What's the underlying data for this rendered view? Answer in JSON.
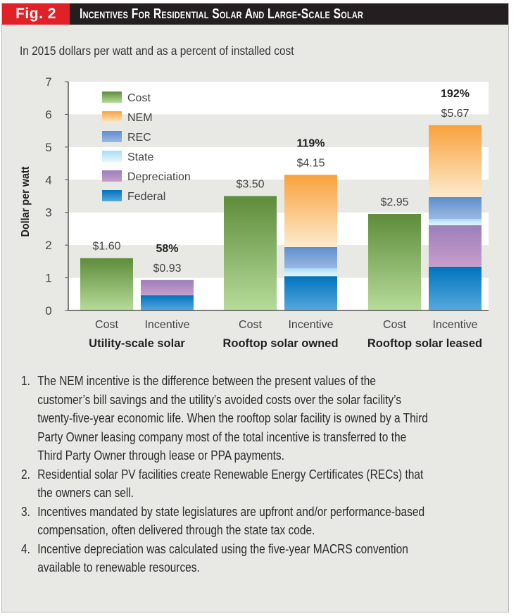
{
  "header": {
    "fig_label": "Fig. 2",
    "title": "Incentives For Residential Solar And Large-Scale Solar"
  },
  "subtitle": "In 2015 dollars per watt and as a percent of installed cost",
  "colors": {
    "header_red": "#e12128",
    "header_black": "#231f20",
    "panel_bg": "#e8e8e5",
    "Cost": [
      "#5e8c3a",
      "#b6dc9a"
    ],
    "NEM": [
      "#f9a13c",
      "#fdebcd"
    ],
    "REC": [
      "#5e8fcc",
      "#9ab8e2"
    ],
    "State": [
      "#a8dcf5",
      "#e6f6fd"
    ],
    "Depreciation": [
      "#9d7dbb",
      "#c89ecb"
    ],
    "Federal": [
      "#0073bd",
      "#56a9de"
    ]
  },
  "chart_data": {
    "type": "bar",
    "stacked": true,
    "title": "Incentives For Residential Solar And Large-Scale Solar",
    "subtitle": "In 2015 dollars per watt and as a percent of installed cost",
    "ylabel": "Dollar per watt",
    "xlabel": "",
    "ylim": [
      0,
      7
    ],
    "yticks": [
      0,
      1,
      2,
      3,
      4,
      5,
      6,
      7
    ],
    "grid": "alternating horizontal bands",
    "legend": {
      "placement": "top-left",
      "entries": [
        "Cost",
        "NEM",
        "REC",
        "State",
        "Depreciation",
        "Federal"
      ]
    },
    "groups": [
      {
        "name": "Utility-scale solar",
        "bars": [
          {
            "label": "Cost",
            "value_label": "$1.60",
            "segments": [
              {
                "series": "Cost",
                "value": 1.6
              }
            ]
          },
          {
            "label": "Incentive",
            "value_label": "$0.93",
            "percent_label": "58%",
            "segments": [
              {
                "series": "Federal",
                "value": 0.47
              },
              {
                "series": "Depreciation",
                "value": 0.46
              }
            ]
          }
        ]
      },
      {
        "name": "Rooftop solar owned",
        "bars": [
          {
            "label": "Cost",
            "value_label": "$3.50",
            "segments": [
              {
                "series": "Cost",
                "value": 3.5
              }
            ]
          },
          {
            "label": "Incentive",
            "value_label": "$4.15",
            "percent_label": "119%",
            "segments": [
              {
                "series": "Federal",
                "value": 1.05
              },
              {
                "series": "State",
                "value": 0.24
              },
              {
                "series": "REC",
                "value": 0.65
              },
              {
                "series": "NEM",
                "value": 2.21
              }
            ]
          }
        ]
      },
      {
        "name": "Rooftop solar leased",
        "bars": [
          {
            "label": "Cost",
            "value_label": "$2.95",
            "segments": [
              {
                "series": "Cost",
                "value": 2.95
              }
            ]
          },
          {
            "label": "Incentive",
            "value_label": "$5.67",
            "percent_label": "192%",
            "segments": [
              {
                "series": "Federal",
                "value": 1.34
              },
              {
                "series": "Depreciation",
                "value": 1.27
              },
              {
                "series": "State",
                "value": 0.19
              },
              {
                "series": "REC",
                "value": 0.67
              },
              {
                "series": "NEM",
                "value": 2.2
              }
            ]
          }
        ]
      }
    ]
  },
  "notes": [
    {
      "num": "1.",
      "lines": [
        "The NEM incentive is the difference between the present values of the",
        "customer’s bill savings and the utility’s avoided costs over the solar facility’s",
        "twenty-five-year economic life. When the rooftop solar facility is owned by a Third",
        "Party Owner leasing company most of the total incentive is transferred to the",
        "Third Party Owner through lease or PPA payments."
      ]
    },
    {
      "num": "2.",
      "lines": [
        "Residential solar PV facilities create Renewable Energy Certificates (RECs) that",
        "the owners can sell."
      ]
    },
    {
      "num": "3.",
      "lines": [
        "Incentives mandated by state legislatures are upfront and/or performance-based",
        "compensation, often delivered through the state tax code."
      ]
    },
    {
      "num": "4.",
      "lines": [
        "Incentive depreciation was calculated using the five-year MACRS convention",
        "available to renewable resources."
      ]
    }
  ]
}
